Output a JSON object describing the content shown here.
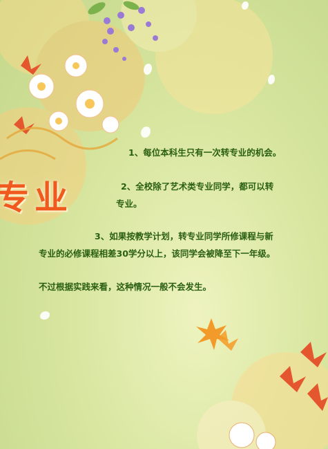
{
  "slide": {
    "title_fragment": "专业",
    "rules": [
      "1、每位本科生只有一次转专业的机会。",
      "2、全校除了艺术类专业同学，都可以转",
      "专业。",
      "3、如果按教学计划，转专业同学所修课程与新",
      "专业的必修课程相差30学分以上，该同学会被降至下一年级。",
      "不过根据实践来看，这种情况一般不会发生。"
    ]
  },
  "colors": {
    "background": "#d8e6a0",
    "text": "#2a5f12",
    "title": "#f15a1e"
  }
}
